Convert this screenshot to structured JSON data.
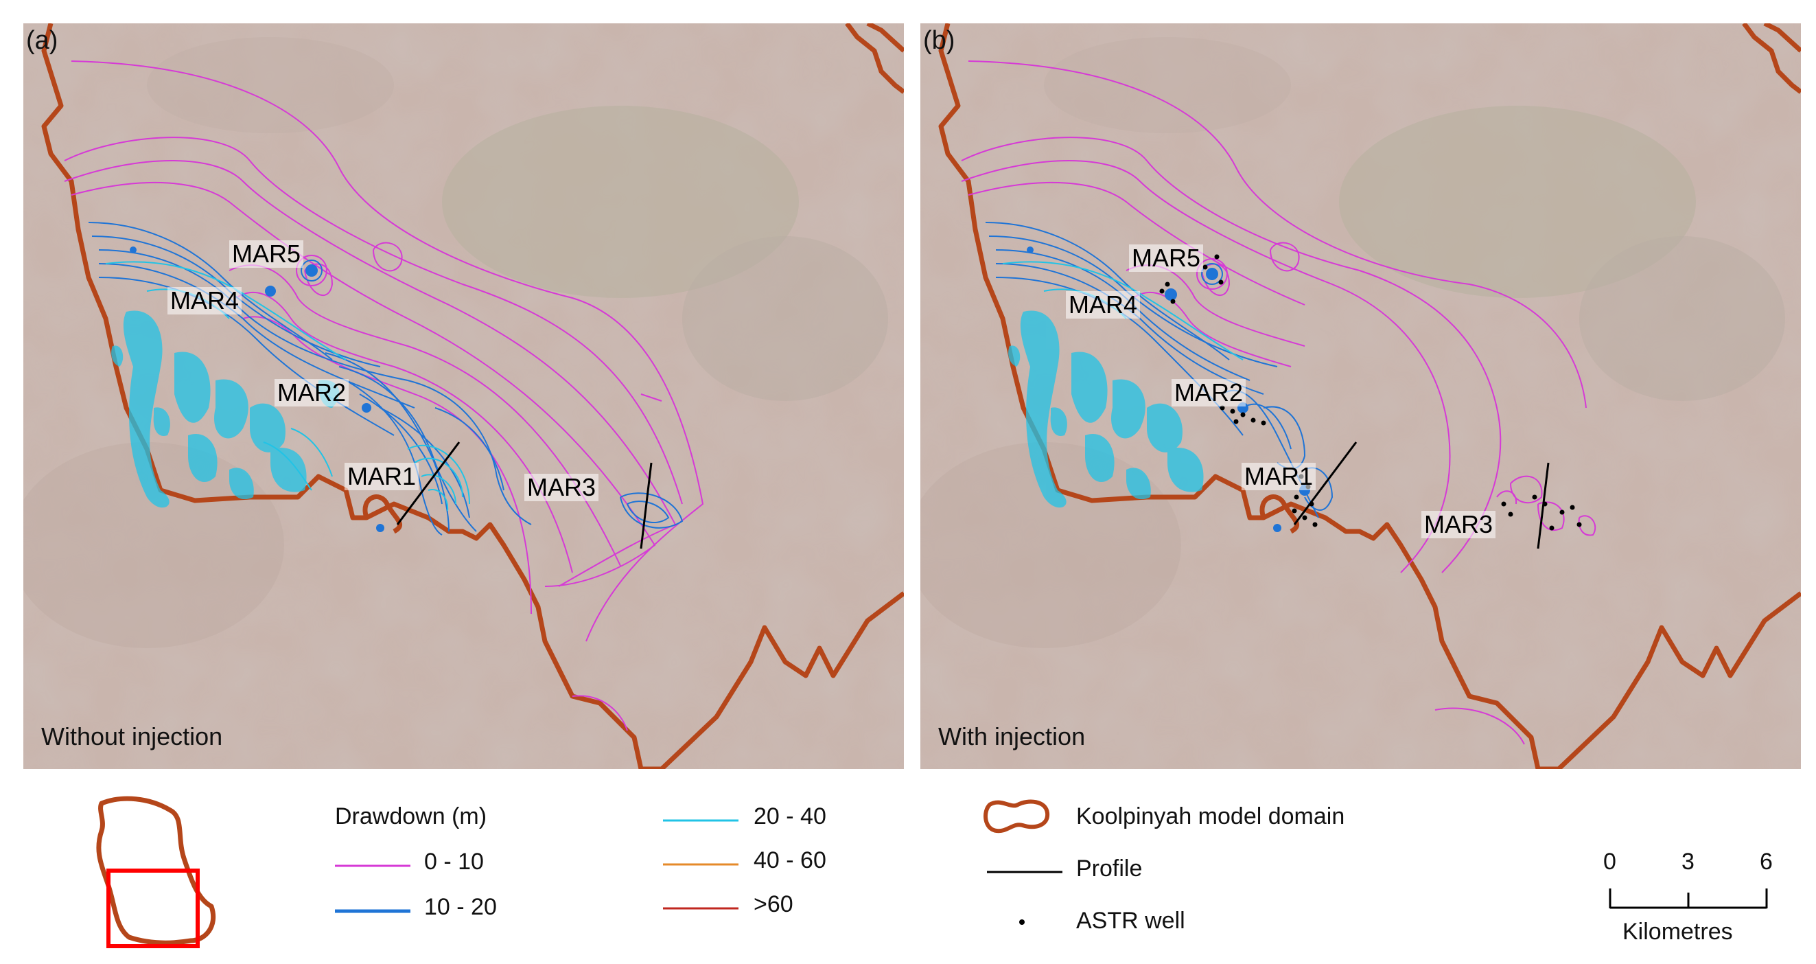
{
  "panels": [
    {
      "letter": "(a)",
      "caption": "Without injection",
      "sites": [
        "MAR5",
        "MAR4",
        "MAR2",
        "MAR1",
        "MAR3"
      ]
    },
    {
      "letter": "(b)",
      "caption": "With injection",
      "sites": [
        "MAR5",
        "MAR4",
        "MAR2",
        "MAR1",
        "MAR3"
      ]
    }
  ],
  "legend": {
    "drawdown_title": "Drawdown (m)",
    "drawdown_classes": [
      {
        "label": "0 - 10",
        "color": "#d63ad6"
      },
      {
        "label": "10 - 20",
        "color": "#1f74d6"
      },
      {
        "label": "20 - 40",
        "color": "#21c3e6"
      },
      {
        "label": "40 - 60",
        "color": "#e58a2a"
      },
      {
        "label": ">60",
        "color": "#c0271f"
      }
    ],
    "domain_label": "Koolpinyah model domain",
    "domain_color": "#b5461a",
    "profile_label": "Profile",
    "well_label": "ASTR well",
    "inset_box_color": "#ff0000"
  },
  "scale_bar": {
    "ticks": [
      "0",
      "3",
      "6"
    ],
    "unit": "Kilometres"
  }
}
